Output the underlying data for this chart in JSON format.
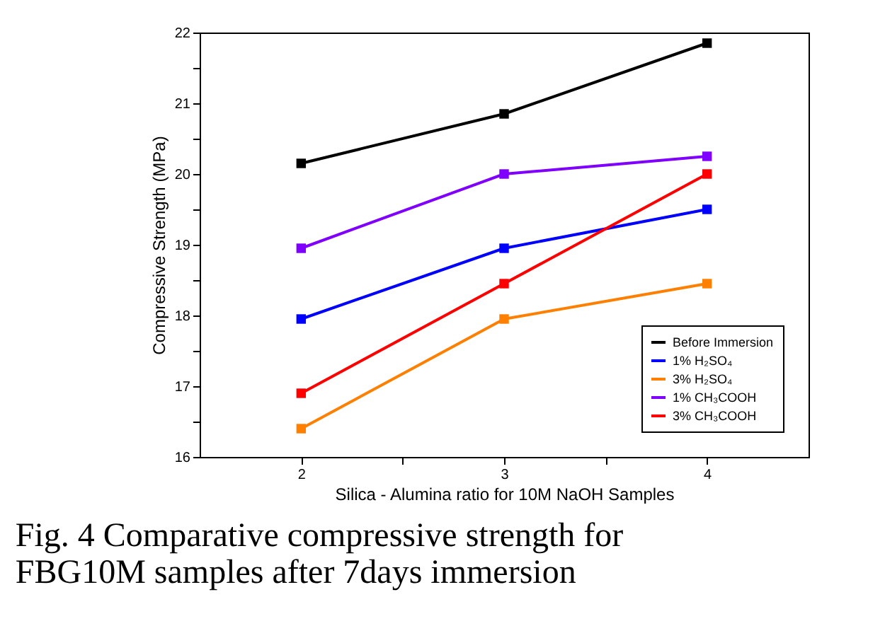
{
  "chart_data": {
    "type": "line",
    "title": "Fig. 4 Comparative compressive strength for FBG10M samples after 7days immersion",
    "xlabel": "Silica - Alumina ratio for 10M NaOH Samples",
    "ylabel": "Compressive Strength (MPa)",
    "x": [
      2,
      3,
      4
    ],
    "series": [
      {
        "name": "Before Immersion",
        "color": "#000000",
        "values": [
          20.15,
          20.85,
          21.85
        ]
      },
      {
        "name": "1% H₂SO₄",
        "color": "#0000ff",
        "values": [
          17.95,
          18.95,
          19.5
        ]
      },
      {
        "name": "3% H₂SO₄",
        "color": "#ff8000",
        "values": [
          16.4,
          17.95,
          18.45
        ]
      },
      {
        "name": "1% CH₃COOH",
        "color": "#8000ff",
        "values": [
          18.95,
          20.0,
          20.25
        ]
      },
      {
        "name": "3% CH₃COOH",
        "color": "#ff0000",
        "values": [
          16.9,
          18.45,
          20.0
        ]
      }
    ],
    "xlim": [
      1.5,
      4.5
    ],
    "xticks": [
      2,
      {
        "value": 2.5,
        "label": null
      },
      3,
      {
        "value": 3.5,
        "label": null
      },
      4
    ],
    "ylim": [
      16,
      22
    ],
    "yticks": [
      16,
      {
        "value": 16.5,
        "label": null
      },
      17,
      {
        "value": 17.5,
        "label": null
      },
      18,
      {
        "value": 18.5,
        "label": null
      },
      19,
      {
        "value": 19.5,
        "label": null
      },
      20,
      {
        "value": 20.5,
        "label": null
      },
      21,
      {
        "value": 21.5,
        "label": null
      },
      22
    ],
    "marker": "square",
    "line_style": "solid",
    "legend": "bottom right",
    "grid": false
  }
}
